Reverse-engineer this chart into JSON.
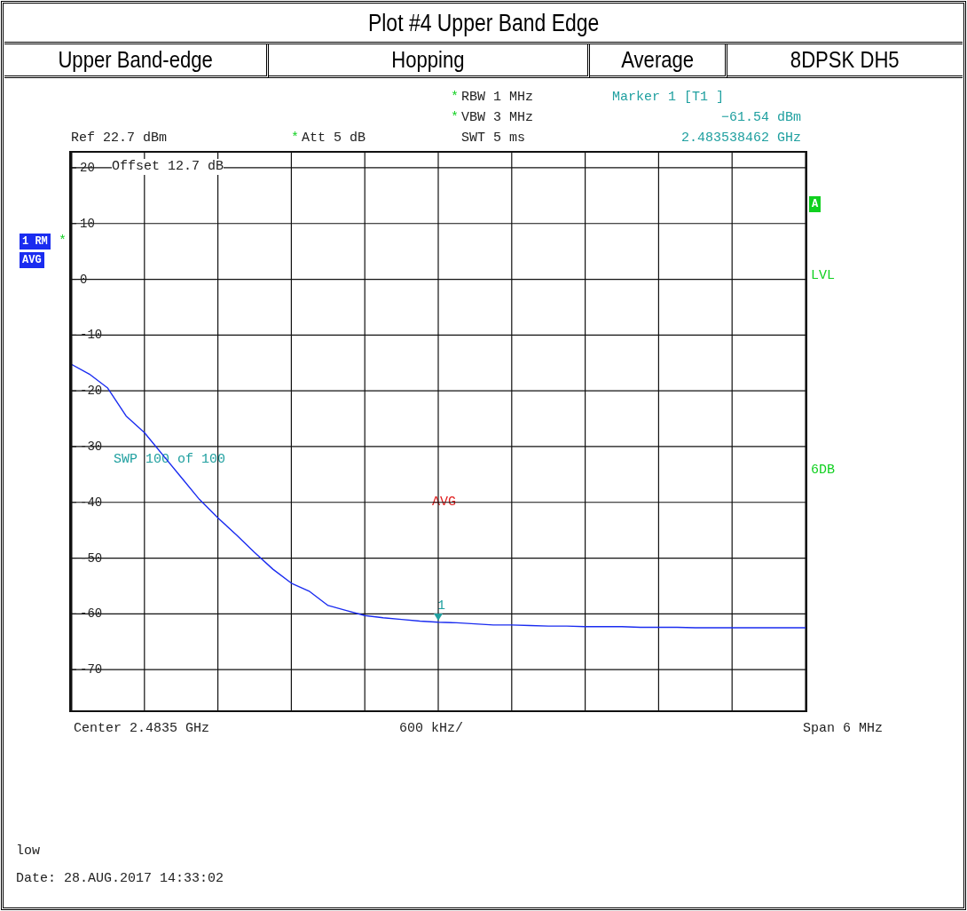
{
  "chart_data": {
    "type": "line",
    "title": "Plot #4 Upper Band Edge",
    "categories": [
      null,
      null,
      null,
      null,
      null,
      null,
      null,
      null,
      null,
      null,
      null,
      null,
      null,
      null,
      null,
      null,
      null,
      null,
      null,
      null,
      null,
      null,
      null,
      null,
      null,
      null,
      null,
      null,
      null,
      null,
      null,
      null,
      null,
      null,
      null,
      null,
      null,
      null,
      null,
      null,
      null
    ],
    "series": [
      {
        "color": "#1a2cf0",
        "values": [
          -15.2,
          -17.0,
          -19.5,
          -24.5,
          -27.5,
          -31.5,
          -35.5,
          -39.5,
          -42.8,
          -45.8,
          -49.0,
          -52.0,
          -54.5,
          -56.0,
          -58.5,
          -59.4,
          -60.3,
          -60.7,
          -61.0,
          -61.3,
          -61.5,
          -61.6,
          -61.8,
          -62.0,
          -62.0,
          -62.1,
          -62.2,
          -62.2,
          -62.3,
          -62.3,
          -62.3,
          -62.4,
          -62.4,
          -62.4,
          -62.5,
          -62.5,
          -62.5,
          -62.5,
          -62.5,
          -62.5,
          -62.5
        ]
      }
    ],
    "ylim": [
      -77.3,
      22.7
    ],
    "yticks": [
      20,
      10,
      0,
      -10,
      -20,
      -30,
      -40,
      -50,
      -60,
      -70
    ],
    "tick_labels": "y",
    "grid": true,
    "legend": false,
    "marker": "none",
    "line_style": "solid",
    "annotations": [
      "Upper Band-edge",
      "Hopping",
      "Average",
      "8DPSK DH5",
      "RBW 1 MHz",
      "VBW 3 MHz",
      "SWT 5 ms",
      "Marker 1 [T1 ]",
      "−61.54 dBm",
      "2.483538462 GHz",
      "Ref 22.7 dBm",
      "Att 5 dB",
      "Offset 12.7 dB",
      "1 RM",
      "AVG",
      "A",
      "LVL",
      "SWP 100 of 100",
      "6DB",
      "AVG",
      "Center 2.4835 GHz",
      "600 kHz/",
      "Span 6 MHz",
      "low",
      "Date: 28.AUG.2017 14:33:02",
      "*",
      "*",
      "*",
      "*",
      "1"
    ]
  }
}
